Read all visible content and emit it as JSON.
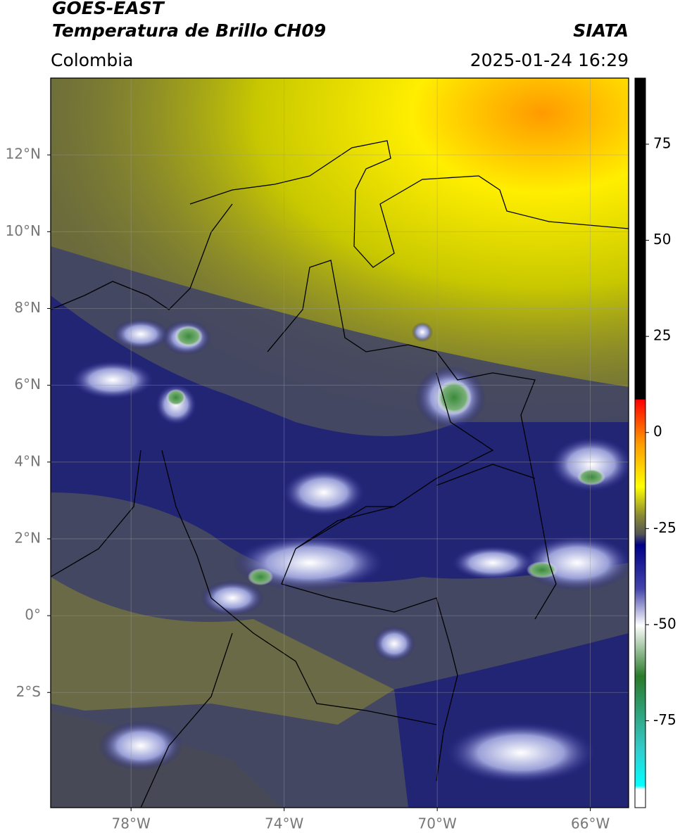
{
  "header": {
    "title": "GOES-EAST",
    "subtitle": "Temperatura de Brillo CH09",
    "source": "SIATA",
    "region": "Colombia",
    "datetime": "2025-01-24 16:29"
  },
  "map": {
    "xlim": [
      -80.1,
      -65
    ],
    "ylim": [
      -5,
      14
    ],
    "xticks": [
      {
        "value": -78,
        "label": "78°W"
      },
      {
        "value": -74,
        "label": "74°W"
      },
      {
        "value": -70,
        "label": "70°W"
      },
      {
        "value": -66,
        "label": "66°W"
      }
    ],
    "yticks": [
      {
        "value": 12,
        "label": "12°N"
      },
      {
        "value": 10,
        "label": "10°N"
      },
      {
        "value": 8,
        "label": "8°N"
      },
      {
        "value": 6,
        "label": "6°N"
      },
      {
        "value": 4,
        "label": "4°N"
      },
      {
        "value": 2,
        "label": "2°N"
      },
      {
        "value": 0,
        "label": "0°"
      },
      {
        "value": -2,
        "label": "2°S"
      }
    ],
    "grid": true
  },
  "colorbar": {
    "lim": [
      -97.6,
      92.2
    ],
    "ticks": [
      75,
      50,
      25,
      0,
      -25,
      -50,
      -75
    ]
  }
}
